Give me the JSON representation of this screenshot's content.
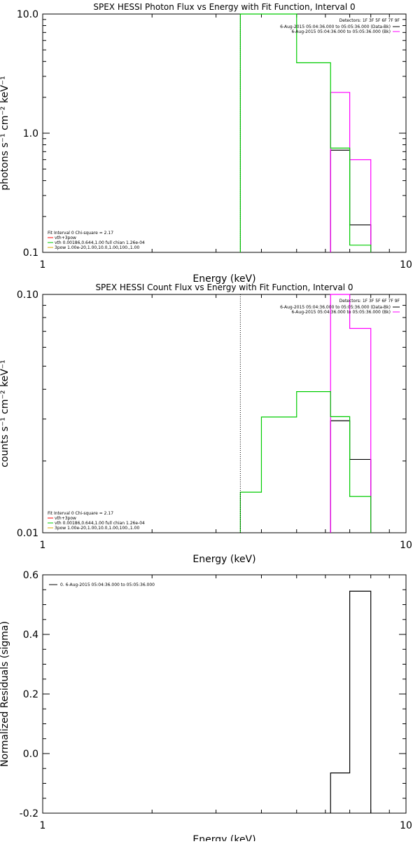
{
  "chart_data": [
    {
      "type": "step",
      "title": "SPEX HESSI Photon Flux vs Energy with Fit Function, Interval 0",
      "xlabel": "Energy (keV)",
      "ylabel": "photons s⁻¹ cm⁻² keV⁻¹",
      "xscale": "log",
      "yscale": "log",
      "xlim": [
        1,
        10
      ],
      "ylim": [
        0.1,
        10
      ],
      "x_ticklabels": [
        "1",
        "10"
      ],
      "y_ticks": [
        0.1,
        1.0,
        10.0
      ],
      "y_ticklabels": [
        "0.1",
        "1.0",
        "10.0"
      ],
      "detectors_text": "Detectors: 1F 3F 5F 6F 7F 9F",
      "legend": [
        {
          "label": "6-Aug-2015 05:04:36.000 to 05:05:36.000 (Data-Bk)",
          "color": "#000000"
        },
        {
          "label": "6-Aug-2015 05:04:36.000 to 05:05:36.000 (Bk)",
          "color": "#ff00ff"
        }
      ],
      "fit_info": [
        {
          "text": "Fit Interval  0   Chi-square = 2.17",
          "color": "#000000"
        },
        {
          "text": "vth+3pow",
          "color": "#ff0000"
        },
        {
          "text": "vth 0.00186,0.644,1.00  full chian 1.26e-04",
          "color": "#00cc00"
        },
        {
          "text": "3pow 1.00e-20,1.00,10.0,1.00,100.,1.00",
          "color": "#ddaa00"
        }
      ],
      "series": [
        {
          "name": "Data-Bk",
          "color": "#000000",
          "edges": [
            6.2,
            7.0,
            8.0
          ],
          "values": [
            0.72,
            0.17
          ]
        },
        {
          "name": "Bk",
          "color": "#ff00ff",
          "edges": [
            6.2,
            7.0,
            8.0
          ],
          "values": [
            2.2,
            0.6
          ]
        },
        {
          "name": "vth",
          "color": "#00cc00",
          "edges": [
            3.5,
            5.0,
            6.2,
            7.0,
            8.0
          ],
          "values": [
            10.0,
            3.9,
            0.75,
            0.115
          ]
        },
        {
          "name": "vline",
          "color": "#00aa00",
          "dashed": true,
          "vline": 3.5
        }
      ]
    },
    {
      "type": "step",
      "title": "SPEX HESSI Count Flux vs Energy with Fit Function, Interval 0",
      "xlabel": "Energy (keV)",
      "ylabel": "counts s⁻¹ cm⁻² keV⁻¹",
      "xscale": "log",
      "yscale": "log",
      "xlim": [
        1,
        10
      ],
      "ylim": [
        0.01,
        0.1
      ],
      "x_ticklabels": [
        "1",
        "10"
      ],
      "y_ticks": [
        0.01,
        0.1
      ],
      "y_ticklabels": [
        "0.01",
        "0.10"
      ],
      "detectors_text": "Detectors: 1F 3F 5F 6F 7F 9F",
      "legend": [
        {
          "label": "6-Aug-2015 05:04:36.000 to 05:05:36.000 (Data-Bk)",
          "color": "#000000"
        },
        {
          "label": "6-Aug-2015 05:04:36.000 to 05:05:36.000 (Bk)",
          "color": "#ff00ff"
        }
      ],
      "fit_info": [
        {
          "text": "Fit Interval  0   Chi-square = 2.17",
          "color": "#000000"
        },
        {
          "text": "vth+3pow",
          "color": "#ff0000"
        },
        {
          "text": "vth 0.00186,0.644,1.00  full chian 1.26e-04",
          "color": "#00cc00"
        },
        {
          "text": "3pow 1.00e-20,1.00,10.0,1.00,100.,1.00",
          "color": "#ddaa00"
        }
      ],
      "series": [
        {
          "name": "Data-Bk",
          "color": "#000000",
          "edges": [
            6.2,
            7.0,
            8.0
          ],
          "values": [
            0.0295,
            0.0203
          ]
        },
        {
          "name": "Bk",
          "color": "#ff00ff",
          "edges": [
            6.2,
            7.0,
            8.0
          ],
          "values": [
            0.1,
            0.072
          ]
        },
        {
          "name": "vth",
          "color": "#00cc00",
          "edges": [
            3.5,
            4.0,
            5.0,
            6.2,
            7.0,
            8.0
          ],
          "values": [
            0.0148,
            0.0306,
            0.0391,
            0.0307,
            0.0142
          ]
        },
        {
          "name": "vline",
          "color": "#000000",
          "dotted": true,
          "vline": 3.5
        }
      ]
    },
    {
      "type": "step",
      "title": "",
      "xlabel": "Energy (keV)",
      "ylabel": "Normalized Residuals (sigma)",
      "xscale": "log",
      "yscale": "linear",
      "xlim": [
        1,
        10
      ],
      "ylim": [
        -0.2,
        0.6
      ],
      "x_ticklabels": [
        "1",
        "10"
      ],
      "y_ticks": [
        -0.2,
        0.0,
        0.2,
        0.4,
        0.6
      ],
      "y_ticklabels": [
        "-0.2",
        "0.0",
        "0.2",
        "0.4",
        "0.6"
      ],
      "legend": [
        {
          "label": "0.  6-Aug-2015 05:04:36.000 to 05:05:36.000",
          "color": "#000000"
        }
      ],
      "series": [
        {
          "name": "residuals",
          "color": "#000000",
          "edges": [
            6.2,
            7.0,
            8.0
          ],
          "values": [
            -0.065,
            0.545
          ]
        }
      ]
    }
  ]
}
